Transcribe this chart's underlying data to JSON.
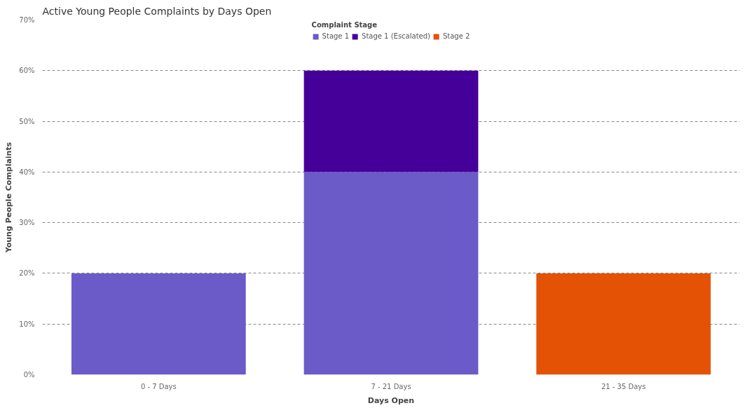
{
  "chart_data": {
    "type": "bar",
    "title": "Active Young People Complaints by Days Open",
    "xlabel": "Days Open",
    "ylabel": "Young People Complaints",
    "legend_title": "Complaint Stage",
    "legend": "top",
    "grid": "y",
    "stacked": true,
    "categories": [
      "0 - 7 Days",
      "7 - 21 Days",
      "21 - 35 Days"
    ],
    "series": [
      {
        "name": "Stage 1",
        "color": "#6b5bc8",
        "values": [
          20,
          40,
          null
        ]
      },
      {
        "name": "Stage 1 (Escalated)",
        "color": "#45009a",
        "values": [
          null,
          20,
          null
        ]
      },
      {
        "name": "Stage 2",
        "color": "#e35205",
        "values": [
          null,
          null,
          20
        ]
      }
    ],
    "ylim": [
      0,
      70
    ],
    "yticks": [
      {
        "value": 0,
        "label": "0%"
      },
      {
        "value": 10,
        "label": "10%"
      },
      {
        "value": 20,
        "label": "20%"
      },
      {
        "value": 30,
        "label": "30%"
      },
      {
        "value": 40,
        "label": "40%"
      },
      {
        "value": 50,
        "label": "50%"
      },
      {
        "value": 60,
        "label": "60%"
      },
      {
        "value": 70,
        "label": "70%"
      }
    ]
  }
}
